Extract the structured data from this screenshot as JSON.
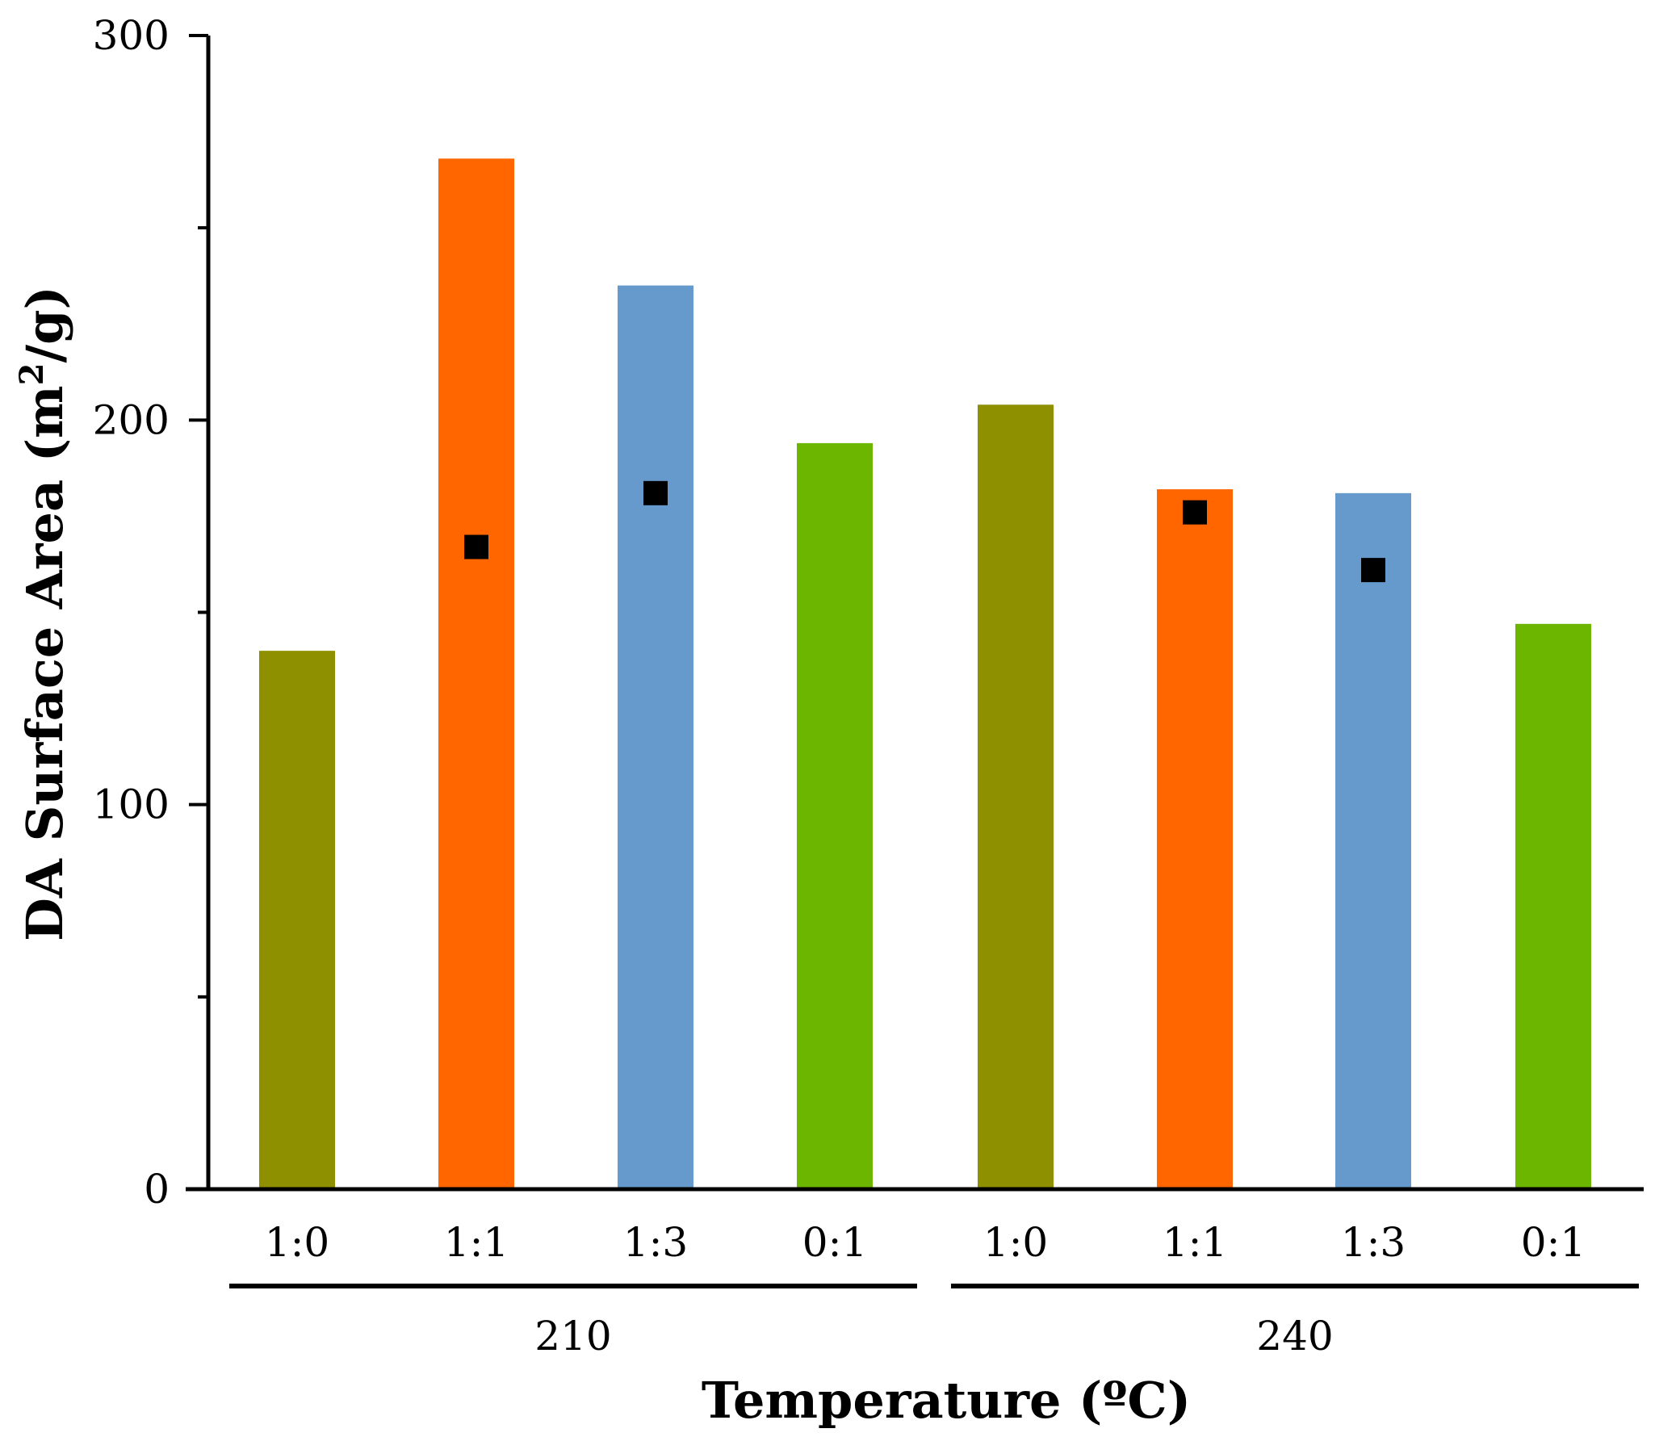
{
  "chart_data": {
    "type": "bar",
    "title": "",
    "xlabel": "Temperature (ºC)",
    "ylabel": {
      "prefix": "DA Surface Area (m",
      "sup": "2",
      "suffix": "/g)"
    },
    "ylim": [
      0,
      300
    ],
    "yticks": [
      0,
      100,
      200,
      300
    ],
    "minor_ticks": [
      50,
      150,
      250
    ],
    "groups": [
      {
        "label": "210",
        "categories": [
          "1:0",
          "1:1",
          "1:3",
          "0:1"
        ]
      },
      {
        "label": "240",
        "categories": [
          "1:0",
          "1:1",
          "1:3",
          "0:1"
        ]
      }
    ],
    "series": [
      {
        "name": "DA Surface Area",
        "kind": "bar",
        "values": [
          140,
          268,
          235,
          194,
          204,
          182,
          181,
          147
        ],
        "colors": [
          "#8f9000",
          "#ff6600",
          "#6699cc",
          "#6cb600",
          "#8f9000",
          "#ff6600",
          "#6699cc",
          "#6cb600"
        ]
      },
      {
        "name": "markers",
        "kind": "scatter",
        "marker": "square",
        "color": "#000000",
        "values": [
          null,
          167,
          181,
          null,
          null,
          176,
          161,
          null
        ]
      }
    ],
    "grid": false,
    "legend": "none"
  }
}
